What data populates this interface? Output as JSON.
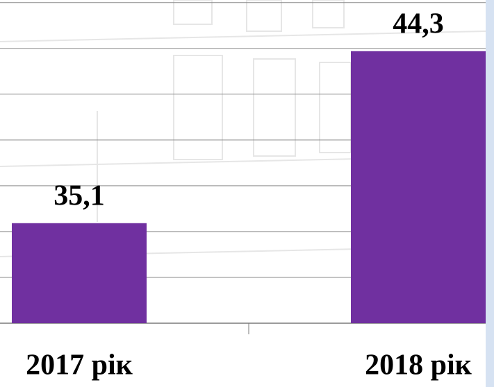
{
  "chart_data": {
    "type": "bar",
    "categories": [
      "2017 рік",
      "2018 рік"
    ],
    "values": [
      35.1,
      44.3
    ],
    "value_labels": [
      "35,1",
      "44,3"
    ],
    "color": "#7030a0",
    "ylim": [
      29.75,
      47.0
    ],
    "yticks": [
      29.75,
      32.2,
      34.65,
      37.1,
      39.55,
      42,
      44.45,
      46.9
    ],
    "grid": true
  }
}
